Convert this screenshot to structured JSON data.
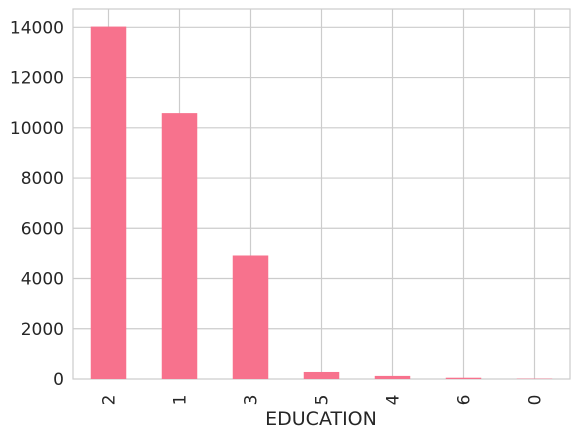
{
  "chart_data": {
    "type": "bar",
    "categories": [
      "2",
      "1",
      "3",
      "5",
      "4",
      "6",
      "0"
    ],
    "values": [
      14030,
      10585,
      4917,
      280,
      123,
      51,
      14
    ],
    "xlabel": "EDUCATION",
    "ylabel": "",
    "ylim": [
      0,
      14730
    ],
    "yticks": [
      0,
      2000,
      4000,
      6000,
      8000,
      10000,
      12000,
      14000
    ],
    "grid": true,
    "bar_color": "#f7728d",
    "grid_color": "#cccccc",
    "background": "#ffffff"
  }
}
